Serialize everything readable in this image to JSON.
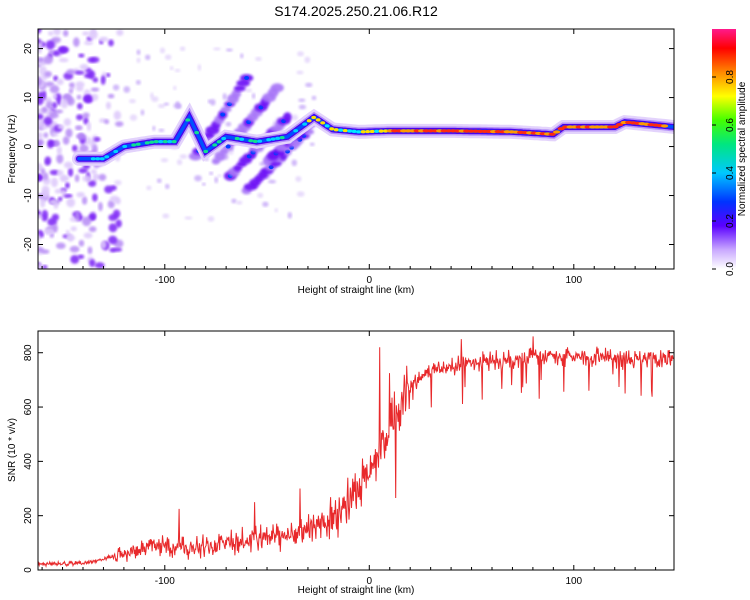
{
  "title": "S174.2025.250.21.06.R12",
  "chart_data": [
    {
      "type": "heatmap",
      "xlabel": "Height of straight line (km)",
      "ylabel": "Frequency (Hz)",
      "xlim": [
        -162,
        149
      ],
      "ylim": [
        -25,
        24
      ],
      "xticks": [
        -100,
        0,
        100
      ],
      "yticks": [
        -20,
        -10,
        0,
        10,
        20
      ],
      "grid": false,
      "ridge": [
        {
          "x": -142,
          "y": -2.5
        },
        {
          "x": -130,
          "y": -2.5
        },
        {
          "x": -120,
          "y": 0
        },
        {
          "x": -105,
          "y": 1
        },
        {
          "x": -95,
          "y": 1
        },
        {
          "x": -88,
          "y": 6
        },
        {
          "x": -80,
          "y": -1
        },
        {
          "x": -70,
          "y": 2
        },
        {
          "x": -55,
          "y": 1
        },
        {
          "x": -40,
          "y": 2
        },
        {
          "x": -27,
          "y": 6
        },
        {
          "x": -18,
          "y": 3.5
        },
        {
          "x": -5,
          "y": 3
        },
        {
          "x": 10,
          "y": 3.2
        },
        {
          "x": 40,
          "y": 3.2
        },
        {
          "x": 70,
          "y": 3
        },
        {
          "x": 90,
          "y": 2.5
        },
        {
          "x": 95,
          "y": 4
        },
        {
          "x": 120,
          "y": 4
        },
        {
          "x": 125,
          "y": 5
        },
        {
          "x": 149,
          "y": 4
        }
      ],
      "colorbar": {
        "label": "Normalized spectral amplitude",
        "ticks": [
          0.0,
          0.2,
          0.4,
          0.6,
          0.8
        ],
        "range": [
          0,
          1
        ]
      }
    },
    {
      "type": "line",
      "xlabel": "Height of straight line (km)",
      "ylabel": "SNR (10 * v/v)",
      "xlim": [
        -162,
        149
      ],
      "ylim": [
        0,
        880
      ],
      "xticks": [
        -100,
        0,
        100
      ],
      "yticks": [
        0,
        200,
        400,
        600,
        800
      ],
      "grid": false,
      "color": "#e8292b",
      "series": [
        {
          "trend": [
            {
              "x": -162,
              "y": 20
            },
            {
              "x": -140,
              "y": 25
            },
            {
              "x": -125,
              "y": 50
            },
            {
              "x": -110,
              "y": 80
            },
            {
              "x": -100,
              "y": 90
            },
            {
              "x": -90,
              "y": 80
            },
            {
              "x": -75,
              "y": 90
            },
            {
              "x": -60,
              "y": 110
            },
            {
              "x": -45,
              "y": 120
            },
            {
              "x": -30,
              "y": 150
            },
            {
              "x": -15,
              "y": 200
            },
            {
              "x": -5,
              "y": 300
            },
            {
              "x": 5,
              "y": 450
            },
            {
              "x": 12,
              "y": 560
            },
            {
              "x": 20,
              "y": 680
            },
            {
              "x": 30,
              "y": 730
            },
            {
              "x": 50,
              "y": 765
            },
            {
              "x": 80,
              "y": 785
            },
            {
              "x": 110,
              "y": 785
            },
            {
              "x": 130,
              "y": 770
            },
            {
              "x": 149,
              "y": 775
            }
          ],
          "peaks": [
            {
              "x": -93,
              "y": 225
            },
            {
              "x": -56,
              "y": 250
            },
            {
              "x": -34,
              "y": 300
            },
            {
              "x": 5,
              "y": 820
            },
            {
              "x": 10,
              "y": 725
            },
            {
              "x": 13,
              "y": 265
            },
            {
              "x": 45,
              "y": 850
            },
            {
              "x": 80,
              "y": 860
            },
            {
              "x": 125,
              "y": 650
            }
          ]
        }
      ]
    }
  ]
}
